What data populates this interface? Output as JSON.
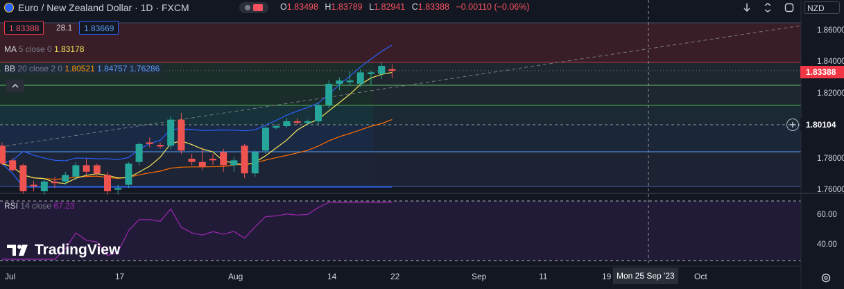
{
  "header": {
    "symbol": "Euro / New Zealand Dollar · 1D · FXCM",
    "open_label": "O",
    "open": "1.83498",
    "high_label": "H",
    "high": "1.83789",
    "low_label": "L",
    "low": "1.82941",
    "close_label": "C",
    "close": "1.83388",
    "change": "−0.00110 (−0.06%)"
  },
  "trade": {
    "sell": "1.83388",
    "spread": "28.1",
    "buy": "1.83669"
  },
  "indicators": {
    "ma": {
      "name": "MA",
      "params": "5 close 0",
      "value": "1.83178"
    },
    "bb": {
      "name": "BB",
      "params": "20 close 2 0",
      "basis": "1.80521",
      "upper": "1.84757",
      "lower": "1.76286"
    },
    "rsi": {
      "name": "RSI",
      "params": "14 close",
      "value": "67.23"
    }
  },
  "toolbar": {
    "currency": "NZD"
  },
  "price_axis": {
    "ticks": [
      "1.86000",
      "1.84000",
      "1.82000",
      "1.78000",
      "1.76000"
    ],
    "last_price": "1.83388",
    "crosshair_price": "1.80104"
  },
  "rsi_axis": {
    "ticks": [
      "60.00",
      "40.00"
    ]
  },
  "time_axis": {
    "ticks": [
      "Jul",
      "17",
      "Aug",
      "14",
      "22",
      "Sep",
      "11",
      "19",
      "Oct"
    ],
    "crosshair_date": "Mon 25 Sep '23"
  },
  "watermark": "TradingView",
  "colors": {
    "up": "#26a69a",
    "down": "#ef5350",
    "bb_upper": "#2962ff",
    "bb_basis": "#ff6d00",
    "ma": "#f5e55b",
    "rsi": "#9c27b0",
    "background": "#131722"
  },
  "icons": [
    "arrow-down-icon",
    "expand-icon",
    "square-icon",
    "settings-icon",
    "crosshair-icon",
    "chevron-up-icon"
  ],
  "chart_data": {
    "type": "candlestick",
    "symbol": "EURNZD",
    "interval": "1D",
    "candles": [
      {
        "o": 1.788,
        "h": 1.79,
        "l": 1.776,
        "c": 1.777
      },
      {
        "o": 1.779,
        "h": 1.7805,
        "l": 1.772,
        "c": 1.773
      },
      {
        "o": 1.776,
        "h": 1.777,
        "l": 1.7585,
        "c": 1.76
      },
      {
        "o": 1.764,
        "h": 1.7665,
        "l": 1.76,
        "c": 1.763
      },
      {
        "o": 1.76,
        "h": 1.768,
        "l": 1.758,
        "c": 1.766
      },
      {
        "o": 1.766,
        "h": 1.769,
        "l": 1.762,
        "c": 1.765
      },
      {
        "o": 1.766,
        "h": 1.772,
        "l": 1.764,
        "c": 1.77
      },
      {
        "o": 1.769,
        "h": 1.778,
        "l": 1.767,
        "c": 1.776
      },
      {
        "o": 1.776,
        "h": 1.78,
        "l": 1.77,
        "c": 1.772
      },
      {
        "o": 1.776,
        "h": 1.777,
        "l": 1.77,
        "c": 1.771
      },
      {
        "o": 1.77,
        "h": 1.772,
        "l": 1.758,
        "c": 1.76
      },
      {
        "o": 1.761,
        "h": 1.764,
        "l": 1.758,
        "c": 1.762
      },
      {
        "o": 1.764,
        "h": 1.778,
        "l": 1.762,
        "c": 1.777
      },
      {
        "o": 1.778,
        "h": 1.79,
        "l": 1.776,
        "c": 1.789
      },
      {
        "o": 1.79,
        "h": 1.793,
        "l": 1.787,
        "c": 1.789
      },
      {
        "o": 1.7885,
        "h": 1.79,
        "l": 1.786,
        "c": 1.7875
      },
      {
        "o": 1.788,
        "h": 1.806,
        "l": 1.786,
        "c": 1.804
      },
      {
        "o": 1.804,
        "h": 1.808,
        "l": 1.783,
        "c": 1.785
      },
      {
        "o": 1.78,
        "h": 1.783,
        "l": 1.776,
        "c": 1.778
      },
      {
        "o": 1.778,
        "h": 1.787,
        "l": 1.773,
        "c": 1.775
      },
      {
        "o": 1.78,
        "h": 1.783,
        "l": 1.776,
        "c": 1.779
      },
      {
        "o": 1.784,
        "h": 1.786,
        "l": 1.772,
        "c": 1.776
      },
      {
        "o": 1.776,
        "h": 1.781,
        "l": 1.772,
        "c": 1.779
      },
      {
        "o": 1.788,
        "h": 1.789,
        "l": 1.768,
        "c": 1.771
      },
      {
        "o": 1.771,
        "h": 1.785,
        "l": 1.769,
        "c": 1.784
      },
      {
        "o": 1.785,
        "h": 1.8,
        "l": 1.783,
        "c": 1.799
      },
      {
        "o": 1.799,
        "h": 1.801,
        "l": 1.798,
        "c": 1.8
      },
      {
        "o": 1.8,
        "h": 1.805,
        "l": 1.799,
        "c": 1.803
      },
      {
        "o": 1.803,
        "h": 1.805,
        "l": 1.801,
        "c": 1.802
      },
      {
        "o": 1.802,
        "h": 1.804,
        "l": 1.801,
        "c": 1.803
      },
      {
        "o": 1.803,
        "h": 1.814,
        "l": 1.801,
        "c": 1.813
      },
      {
        "o": 1.813,
        "h": 1.828,
        "l": 1.811,
        "c": 1.826
      },
      {
        "o": 1.826,
        "h": 1.83,
        "l": 1.822,
        "c": 1.828
      },
      {
        "o": 1.827,
        "h": 1.834,
        "l": 1.825,
        "c": 1.828
      },
      {
        "o": 1.826,
        "h": 1.835,
        "l": 1.824,
        "c": 1.833
      },
      {
        "o": 1.832,
        "h": 1.834,
        "l": 1.825,
        "c": 1.833
      },
      {
        "o": 1.832,
        "h": 1.839,
        "l": 1.829,
        "c": 1.837
      },
      {
        "o": 1.83498,
        "h": 1.83789,
        "l": 1.82941,
        "c": 1.83388
      }
    ]
  }
}
